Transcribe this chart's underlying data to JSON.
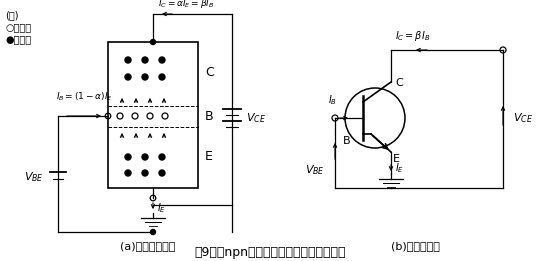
{
  "title": "第9図　npnトランジスタのエミッタ接地",
  "subtitle_a": "(a)　構造モデル",
  "subtitle_b": "(b)　回路記号",
  "note_line1": "(注)  ○：正孔",
  "note_line2": "●：電子",
  "bg_color": "#ffffff",
  "line_color": "#000000",
  "fig_width": 5.4,
  "fig_height": 2.61
}
